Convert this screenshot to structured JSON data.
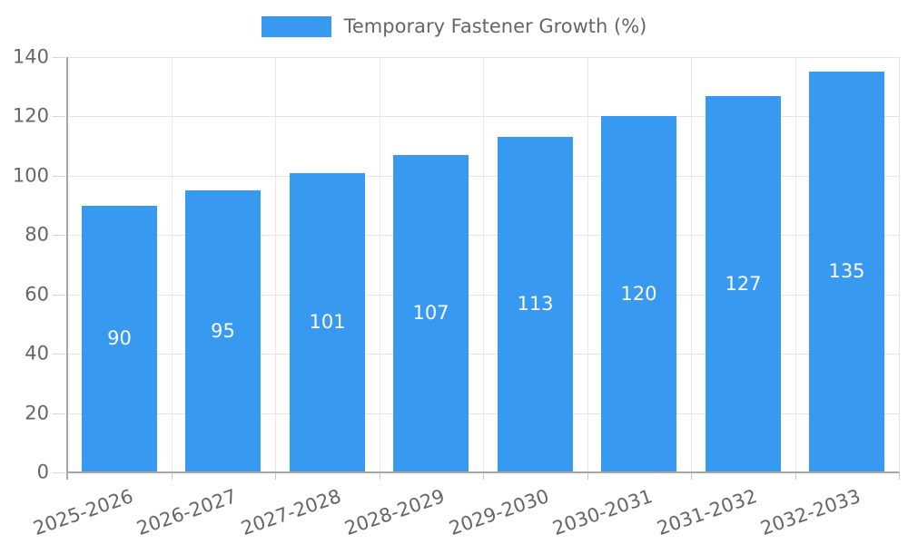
{
  "legend": {
    "label": "Temporary Fastener Growth (%)"
  },
  "colors": {
    "bar": "#3899f0",
    "grid": "#e5e5e5",
    "axis": "#a6a6a6",
    "tick_text": "#666666",
    "value_label": "#ffffff",
    "background": "#ffffff"
  },
  "chart_data": {
    "type": "bar",
    "title": "Temporary Fastener Growth (%)",
    "categories": [
      "2025-2026",
      "2026-2027",
      "2027-2028",
      "2028-2029",
      "2029-2030",
      "2030-2031",
      "2031-2032",
      "2032-2033"
    ],
    "values": [
      90,
      95,
      101,
      107,
      113,
      120,
      127,
      135
    ],
    "xlabel": "",
    "ylabel": "",
    "ylim": [
      0,
      140
    ],
    "yticks": [
      0,
      20,
      40,
      60,
      80,
      100,
      120,
      140
    ],
    "grid": true,
    "legend_position": "top-center",
    "value_labels": "inside-center",
    "x_label_rotation_deg": -19
  }
}
